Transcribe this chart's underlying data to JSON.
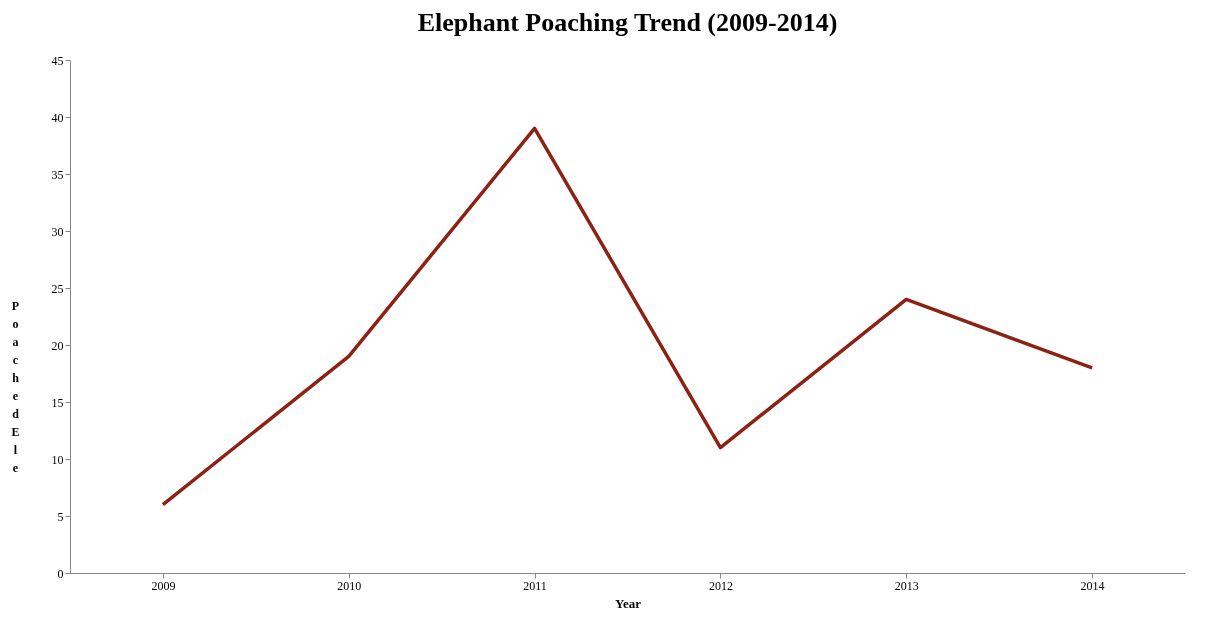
{
  "chart_data": {
    "type": "line",
    "title": "Elephant Poaching Trend (2009-2014)",
    "xlabel": "Year",
    "ylabel": "Poached Ele",
    "categories": [
      "2009",
      "2010",
      "2011",
      "2012",
      "2013",
      "2014"
    ],
    "series": [
      {
        "color": "#8b2214",
        "values": [
          6,
          19,
          39,
          11,
          24,
          18
        ]
      }
    ],
    "ylim": [
      0,
      45
    ],
    "yticks": [
      0,
      5,
      10,
      15,
      20,
      25,
      30,
      35,
      40,
      45
    ],
    "grid": false,
    "marker": "none",
    "line_style": "solid"
  }
}
